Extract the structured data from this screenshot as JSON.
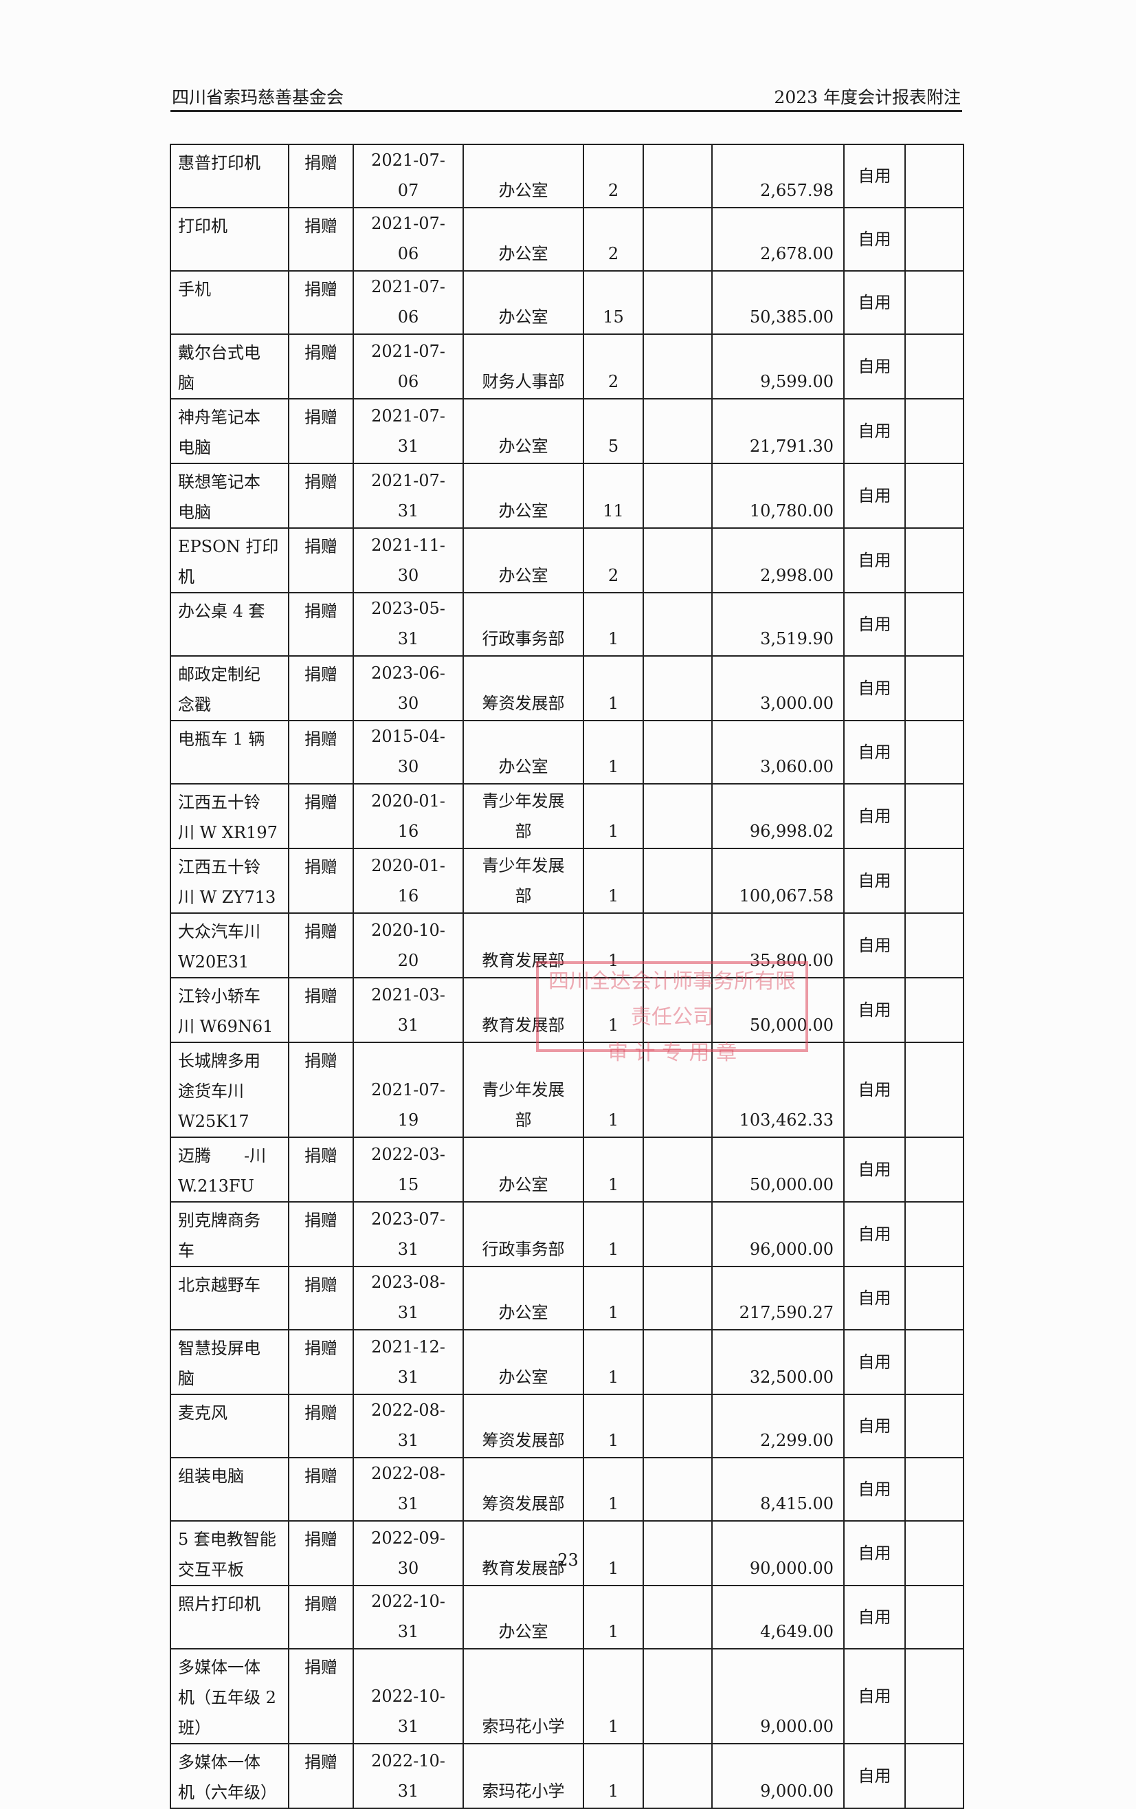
{
  "header": {
    "left": "四川省索玛慈善基金会",
    "right": "2023 年度会计报表附注"
  },
  "rows": [
    {
      "name": "惠普打印机",
      "source": "捐赠",
      "date": "2021-07-07",
      "dept": "办公室",
      "qty": "2",
      "blank": "",
      "amount": "2,657.98",
      "use": "自用",
      "note": ""
    },
    {
      "name": "打印机",
      "source": "捐赠",
      "date": "2021-07-06",
      "dept": "办公室",
      "qty": "2",
      "blank": "",
      "amount": "2,678.00",
      "use": "自用",
      "note": ""
    },
    {
      "name": "手机",
      "source": "捐赠",
      "date": "2021-07-06",
      "dept": "办公室",
      "qty": "15",
      "blank": "",
      "amount": "50,385.00",
      "use": "自用",
      "note": ""
    },
    {
      "name": "戴尔台式电\n脑",
      "source": "捐赠",
      "date": "2021-07-06",
      "dept": "财务人事部",
      "qty": "2",
      "blank": "",
      "amount": "9,599.00",
      "use": "自用",
      "note": ""
    },
    {
      "name": "神舟笔记本\n电脑",
      "source": "捐赠",
      "date": "2021-07-31",
      "dept": "办公室",
      "qty": "5",
      "blank": "",
      "amount": "21,791.30",
      "use": "自用",
      "note": ""
    },
    {
      "name": "联想笔记本\n电脑",
      "source": "捐赠",
      "date": "2021-07-31",
      "dept": "办公室",
      "qty": "11",
      "blank": "",
      "amount": "10,780.00",
      "use": "自用",
      "note": ""
    },
    {
      "name": "EPSON 打印机",
      "source": "捐赠",
      "date": "2021-11-30",
      "dept": "办公室",
      "qty": "2",
      "blank": "",
      "amount": "2,998.00",
      "use": "自用",
      "note": ""
    },
    {
      "name": "办公桌 4 套",
      "source": "捐赠",
      "date": "2023-05-31",
      "dept": "行政事务部",
      "qty": "1",
      "blank": "",
      "amount": "3,519.90",
      "use": "自用",
      "note": ""
    },
    {
      "name": "邮政定制纪\n念戳",
      "source": "捐赠",
      "date": "2023-06-30",
      "dept": "筹资发展部",
      "qty": "1",
      "blank": "",
      "amount": "3,000.00",
      "use": "自用",
      "note": ""
    },
    {
      "name": "电瓶车 1 辆",
      "source": "捐赠",
      "date": "2015-04-30",
      "dept": "办公室",
      "qty": "1",
      "blank": "",
      "amount": "3,060.00",
      "use": "自用",
      "note": ""
    },
    {
      "name": "江西五十铃\n川 W XR197",
      "source": "捐赠",
      "date": "2020-01-16",
      "dept": "青少年发展\n部",
      "qty": "1",
      "blank": "",
      "amount": "96,998.02",
      "use": "自用",
      "note": ""
    },
    {
      "name": "江西五十铃\n川 W ZY713",
      "source": "捐赠",
      "date": "2020-01-16",
      "dept": "青少年发展\n部",
      "qty": "1",
      "blank": "",
      "amount": "100,067.58",
      "use": "自用",
      "note": ""
    },
    {
      "name": "大众汽车川\nW20E31",
      "source": "捐赠",
      "date": "2020-10-20",
      "dept": "教育发展部",
      "qty": "1",
      "blank": "",
      "amount": "35,800.00",
      "use": "自用",
      "note": ""
    },
    {
      "name": "江铃小轿车\n川 W69N61",
      "source": "捐赠",
      "date": "2021-03-31",
      "dept": "教育发展部",
      "qty": "1",
      "blank": "",
      "amount": "50,000.00",
      "use": "自用",
      "note": ""
    },
    {
      "name": "长城牌多用\n途货车川\nW25K17",
      "source": "捐赠",
      "date": "2021-07-19",
      "dept": "青少年发展\n部",
      "qty": "1",
      "blank": "",
      "amount": "103,462.33",
      "use": "自用",
      "note": ""
    },
    {
      "name": "迈腾　　-川\nW.213FU",
      "source": "捐赠",
      "date": "2022-03-15",
      "dept": "办公室",
      "qty": "1",
      "blank": "",
      "amount": "50,000.00",
      "use": "自用",
      "note": ""
    },
    {
      "name": "别克牌商务\n车",
      "source": "捐赠",
      "date": "2023-07-31",
      "dept": "行政事务部",
      "qty": "1",
      "blank": "",
      "amount": "96,000.00",
      "use": "自用",
      "note": ""
    },
    {
      "name": "北京越野车",
      "source": "捐赠",
      "date": "2023-08-31",
      "dept": "办公室",
      "qty": "1",
      "blank": "",
      "amount": "217,590.27",
      "use": "自用",
      "note": ""
    },
    {
      "name": "智慧投屏电\n脑",
      "source": "捐赠",
      "date": "2021-12-31",
      "dept": "办公室",
      "qty": "1",
      "blank": "",
      "amount": "32,500.00",
      "use": "自用",
      "note": ""
    },
    {
      "name": "麦克风",
      "source": "捐赠",
      "date": "2022-08-31",
      "dept": "筹资发展部",
      "qty": "1",
      "blank": "",
      "amount": "2,299.00",
      "use": "自用",
      "note": ""
    },
    {
      "name": "组装电脑",
      "source": "捐赠",
      "date": "2022-08-31",
      "dept": "筹资发展部",
      "qty": "1",
      "blank": "",
      "amount": "8,415.00",
      "use": "自用",
      "note": ""
    },
    {
      "name": "5 套电教智能\n交互平板",
      "source": "捐赠",
      "date": "2022-09-30",
      "dept": "教育发展部",
      "qty": "1",
      "blank": "",
      "amount": "90,000.00",
      "use": "自用",
      "note": ""
    },
    {
      "name": "照片打印机",
      "source": "捐赠",
      "date": "2022-10-31",
      "dept": "办公室",
      "qty": "1",
      "blank": "",
      "amount": "4,649.00",
      "use": "自用",
      "note": ""
    },
    {
      "name": "多媒体一体\n机（五年级 2\n班）",
      "source": "捐赠",
      "date": "2022-10-31",
      "dept": "索玛花小学",
      "qty": "1",
      "blank": "",
      "amount": "9,000.00",
      "use": "自用",
      "note": ""
    },
    {
      "name": "多媒体一体\n机（六年级）",
      "source": "捐赠",
      "date": "2022-10-31",
      "dept": "索玛花小学",
      "qty": "1",
      "blank": "",
      "amount": "9,000.00",
      "use": "自用",
      "note": ""
    }
  ],
  "stamp": {
    "line1": "四川全达会计师事务所有限责任公司",
    "line2": "审 计 专 用 章",
    "color": "#dc465a"
  },
  "page_number": "23"
}
